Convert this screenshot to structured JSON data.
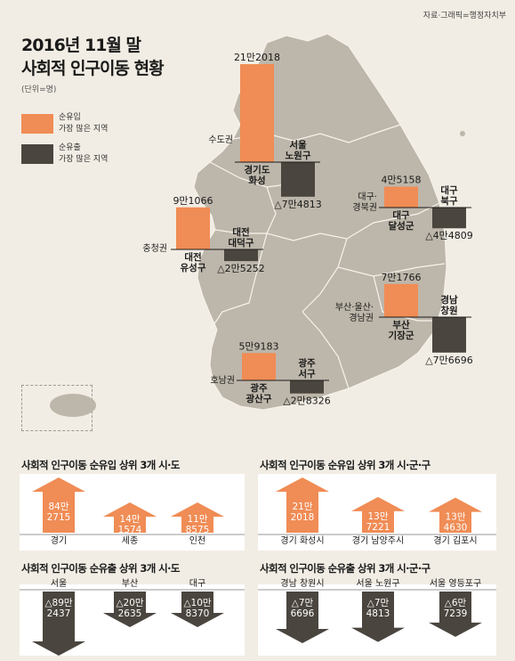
{
  "source": "자료·그래픽=행정자치부",
  "title_line1": "2016년 11월 말",
  "title_line2": "사회적 인구이동 현황",
  "unit": "(단위=명)",
  "legend": {
    "inflow_line1": "순유입",
    "inflow_line2": "가장 많은 지역",
    "outflow_line1": "순유출",
    "outflow_line2": "가장 많은 지역"
  },
  "colors": {
    "inflow": "#f08c55",
    "outflow": "#4a453e",
    "map": "#bdb6aa",
    "map_border": "#f7f3ec",
    "background": "#f2ede4"
  },
  "chart_data": [
    {
      "type": "bar",
      "title": "",
      "regions": [
        {
          "region": "수도권",
          "inflow_label": "경기도\n화성",
          "inflow_value": 212018,
          "inflow_text": "21만2018",
          "outflow_label": "서울\n노원구",
          "outflow_value": -74813,
          "outflow_text": "△7만4813"
        },
        {
          "region": "대구·\n경북권",
          "inflow_label": "대구\n달성군",
          "inflow_value": 45158,
          "inflow_text": "4만5158",
          "outflow_label": "대구\n북구",
          "outflow_value": -44809,
          "outflow_text": "△4만4809"
        },
        {
          "region": "충청권",
          "inflow_label": "대전\n유성구",
          "inflow_value": 91066,
          "inflow_text": "9만1066",
          "outflow_label": "대전\n대덕구",
          "outflow_value": -25252,
          "outflow_text": "△2만5252"
        },
        {
          "region": "부산·울산·\n경남권",
          "inflow_label": "부산\n기장군",
          "inflow_value": 71766,
          "inflow_text": "7만1766",
          "outflow_label": "경남\n창원",
          "outflow_value": -76696,
          "outflow_text": "△7만6696"
        },
        {
          "region": "호남권",
          "inflow_label": "광주\n광산구",
          "inflow_value": 59183,
          "inflow_text": "5만9183",
          "outflow_label": "광주\n서구",
          "outflow_value": -28326,
          "outflow_text": "△2만8326"
        }
      ]
    },
    {
      "type": "bar",
      "title": "사회적 인구이동 순유입 상위 3개 시·도",
      "direction": "inflow",
      "items": [
        {
          "name": "경기",
          "value": 842715,
          "line1": "84만",
          "line2": "2715"
        },
        {
          "name": "세종",
          "value": 141574,
          "line1": "14만",
          "line2": "1574"
        },
        {
          "name": "인천",
          "value": 118575,
          "line1": "11만",
          "line2": "8575"
        }
      ]
    },
    {
      "type": "bar",
      "title": "사회적 인구이동 순유입 상위 3개 시·군·구",
      "direction": "inflow",
      "items": [
        {
          "name": "경기 화성시",
          "value": 212018,
          "line1": "21만",
          "line2": "2018"
        },
        {
          "name": "경기 남양주시",
          "value": 137221,
          "line1": "13만",
          "line2": "7221"
        },
        {
          "name": "경기 김포시",
          "value": 134630,
          "line1": "13만",
          "line2": "4630"
        }
      ]
    },
    {
      "type": "bar",
      "title": "사회적 인구이동 순유출 상위 3개 시·도",
      "direction": "outflow",
      "items": [
        {
          "name": "서울",
          "value": -892437,
          "line1": "△89만",
          "line2": "2437"
        },
        {
          "name": "부산",
          "value": -202635,
          "line1": "△20만",
          "line2": "2635"
        },
        {
          "name": "대구",
          "value": -108370,
          "line1": "△10만",
          "line2": "8370"
        }
      ]
    },
    {
      "type": "bar",
      "title": "사회적 인구이동 순유출 상위 3개 시·군·구",
      "direction": "outflow",
      "items": [
        {
          "name": "경남 창원시",
          "value": -76696,
          "line1": "△7만",
          "line2": "6696"
        },
        {
          "name": "서울 노원구",
          "value": -74813,
          "line1": "△7만",
          "line2": "4813"
        },
        {
          "name": "서울 영등포구",
          "value": -67239,
          "line1": "△6만",
          "line2": "7239"
        }
      ]
    }
  ]
}
